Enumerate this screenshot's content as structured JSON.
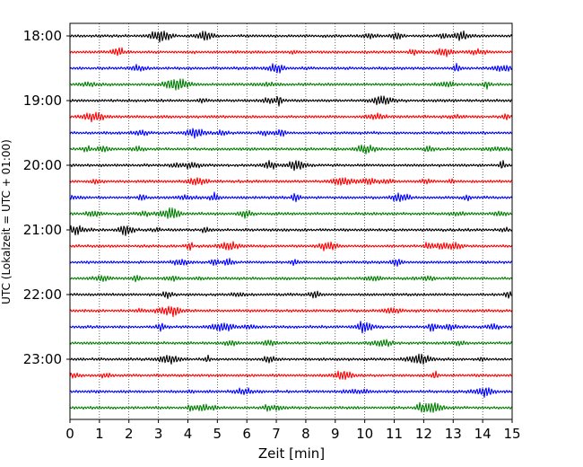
{
  "chart_data": {
    "type": "line",
    "title": "",
    "xlabel": "Zeit  [min]",
    "ylabel": "UTC (Lokalzeit = UTC + 01:00)",
    "xlim": [
      0,
      15
    ],
    "x_ticks": [
      "0",
      "1",
      "2",
      "3",
      "4",
      "5",
      "6",
      "7",
      "8",
      "9",
      "10",
      "11",
      "12",
      "13",
      "14",
      "15"
    ],
    "y_tick_labels": [
      "18:00",
      "19:00",
      "20:00",
      "21:00",
      "22:00",
      "23:00"
    ],
    "grid": "vertical dotted",
    "trace_interval_minutes": 15,
    "trace_start": "18:00",
    "trace_count": 24,
    "trace_color_cycle": [
      "#000000",
      "#ff0000",
      "#0000ff",
      "#008000"
    ]
  }
}
